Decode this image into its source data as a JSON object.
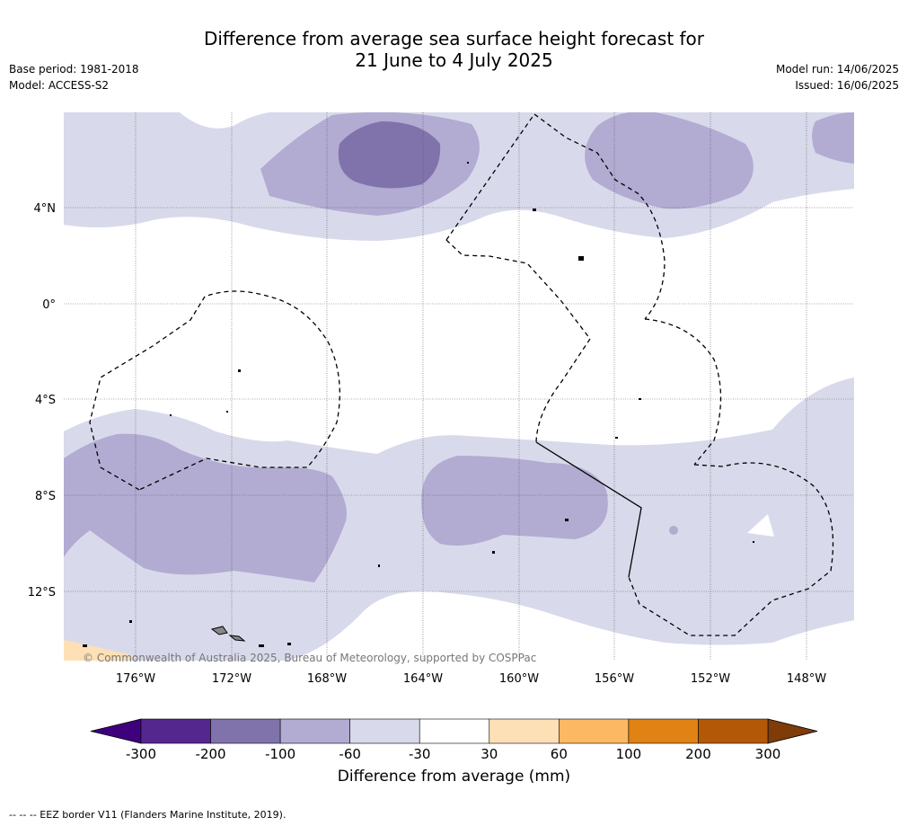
{
  "title_line1": "Difference from average sea surface height forecast for",
  "title_line2": "21 June to 4 July 2025",
  "base_period": "Base period: 1981-2018",
  "model": "Model: ACCESS-S2",
  "model_run": "Model run: 14/06/2025",
  "issued": "Issued: 16/06/2025",
  "copyright": "© Commonwealth of Australia 2025, Bureau of Meteorology, supported by COSPPac",
  "footer_note": "--  --  -- EEZ border V11 (Flanders Marine Institute, 2019).",
  "map": {
    "lon_range": [
      -178,
      -145
    ],
    "lat_range": [
      -15,
      8
    ],
    "lon_ticks": [
      "176°W",
      "172°W",
      "168°W",
      "164°W",
      "160°W",
      "156°W",
      "152°W",
      "148°W"
    ],
    "lat_ticks": [
      "4°N",
      "0°",
      "4°S",
      "8°S",
      "12°S"
    ]
  },
  "colorbar": {
    "title": "Difference from average (mm)",
    "tick_labels": [
      "-300",
      "-200",
      "-100",
      "-60",
      "-30",
      "30",
      "60",
      "100",
      "200",
      "300"
    ],
    "under_color": "#3f007d",
    "over_color": "#7f3b08",
    "colors": [
      "#54278f",
      "#8073ac",
      "#b2abd2",
      "#d8daeb",
      "#ffffff",
      "#fee0b6",
      "#fdb863",
      "#e08214",
      "#b35806"
    ]
  }
}
